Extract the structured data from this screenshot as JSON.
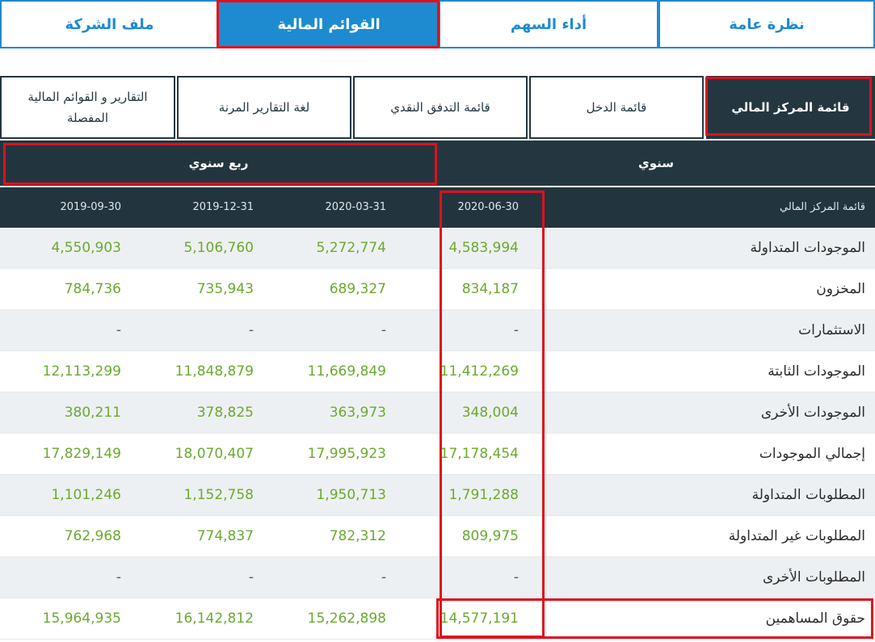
{
  "top_tabs": {
    "overview": "نظرة عامة",
    "stock_performance": "أداء السهم",
    "financial_statements": "القوائم المالية",
    "company_profile": "ملف الشركة"
  },
  "sub_tabs": {
    "balance_sheet": "قائمة المركز المالي",
    "income_statement": "قائمة الدخل",
    "cash_flow": "قائمة التدفق النقدي",
    "xbrl": "لغة التقارير المرنة",
    "detailed_reports_line1": "التقارير و القوائم المالية",
    "detailed_reports_line2": "المفصلة"
  },
  "period": {
    "annual": "سنوي",
    "quarterly": "ربع سنوي"
  },
  "table": {
    "header_label": "قائمة المركز المالي",
    "dates": [
      "2020-06-30",
      "2020-03-31",
      "2019-12-31",
      "2019-09-30"
    ],
    "rows": [
      {
        "label": "الموجودات المتداولة",
        "values": [
          "4,583,994",
          "5,272,774",
          "5,106,760",
          "4,550,903"
        ]
      },
      {
        "label": "المخزون",
        "values": [
          "834,187",
          "689,327",
          "735,943",
          "784,736"
        ]
      },
      {
        "label": "الاستثمارات",
        "values": [
          "-",
          "-",
          "-",
          "-"
        ]
      },
      {
        "label": "الموجودات الثابتة",
        "values": [
          "11,412,269",
          "11,669,849",
          "11,848,879",
          "12,113,299"
        ]
      },
      {
        "label": "الموجودات الأخرى",
        "values": [
          "348,004",
          "363,973",
          "378,825",
          "380,211"
        ]
      },
      {
        "label": "إجمالي الموجودات",
        "values": [
          "17,178,454",
          "17,995,923",
          "18,070,407",
          "17,829,149"
        ]
      },
      {
        "label": "المطلوبات المتداولة",
        "values": [
          "1,791,288",
          "1,950,713",
          "1,152,758",
          "1,101,246"
        ]
      },
      {
        "label": "المطلوبات غير المتداولة",
        "values": [
          "809,975",
          "782,312",
          "774,837",
          "762,968"
        ]
      },
      {
        "label": "المطلوبات الأخرى",
        "values": [
          "-",
          "-",
          "-",
          "-"
        ]
      },
      {
        "label": "حقوق المساهمين",
        "values": [
          "14,577,191",
          "15,262,898",
          "16,142,812",
          "15,964,935"
        ]
      }
    ]
  },
  "colors": {
    "accent_blue": "#1e8bd0",
    "dark_navy": "#243741",
    "value_green": "#6aaa2e",
    "highlight_red": "#e0101c"
  }
}
